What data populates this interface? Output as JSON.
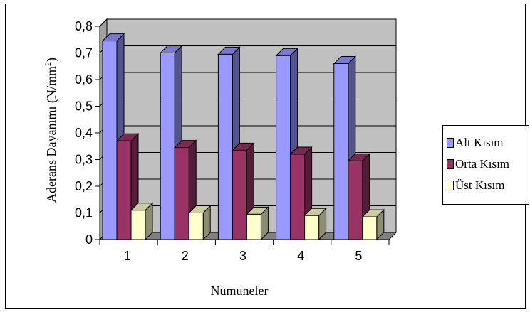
{
  "chart_data": {
    "type": "bar",
    "categories": [
      "1",
      "2",
      "3",
      "4",
      "5"
    ],
    "series": [
      {
        "name": "Alt Kısım",
        "values": [
          0.745,
          0.7,
          0.695,
          0.69,
          0.66
        ],
        "color": "#9999FF"
      },
      {
        "name": "Orta Kısım",
        "values": [
          0.37,
          0.345,
          0.335,
          0.32,
          0.295
        ],
        "color": "#993366"
      },
      {
        "name": "Üst Kısım",
        "values": [
          0.11,
          0.1,
          0.095,
          0.09,
          0.085
        ],
        "color": "#FFFFCC"
      }
    ],
    "ylim": [
      0,
      0.8
    ],
    "yticks": [
      "0",
      "0,1",
      "0,2",
      "0,3",
      "0,4",
      "0,5",
      "0,6",
      "0,7",
      "0,8"
    ],
    "xlabel": "Numuneler",
    "ylabel": "Aderans Dayanımı  (N/mm",
    "ylabel_sup": "2",
    "ylabel_end": ")",
    "grid": true,
    "legend_position": "right",
    "wall_color": "#C0C0C0",
    "floor_color": "#808080"
  }
}
